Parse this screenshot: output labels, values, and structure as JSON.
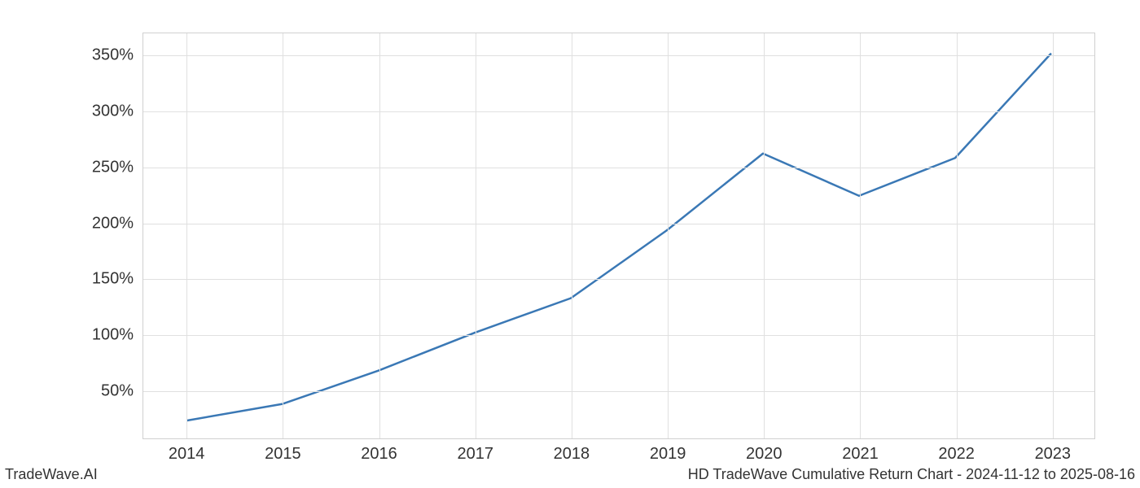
{
  "chart": {
    "type": "line",
    "line_color": "#3a78b5",
    "line_width": 2.5,
    "background_color": "#ffffff",
    "grid_color": "#e0e0e0",
    "border_color": "#d0d0d0",
    "tick_label_fontsize": 20,
    "tick_label_color": "#333333",
    "x": {
      "values": [
        2014,
        2015,
        2016,
        2017,
        2018,
        2019,
        2020,
        2021,
        2022,
        2023
      ],
      "ticks": [
        2014,
        2015,
        2016,
        2017,
        2018,
        2019,
        2020,
        2021,
        2022,
        2023
      ],
      "tick_labels": [
        "2014",
        "2015",
        "2016",
        "2017",
        "2018",
        "2019",
        "2020",
        "2021",
        "2022",
        "2023"
      ],
      "lim": [
        2013.55,
        2023.45
      ]
    },
    "y": {
      "values": [
        22,
        37,
        67,
        101,
        132,
        193,
        262,
        224,
        258,
        352
      ],
      "ticks": [
        50,
        100,
        150,
        200,
        250,
        300,
        350
      ],
      "tick_labels": [
        "50%",
        "100%",
        "150%",
        "200%",
        "250%",
        "300%",
        "350%"
      ],
      "lim": [
        6,
        370
      ]
    }
  },
  "footer": {
    "left": "TradeWave.AI",
    "right": "HD TradeWave Cumulative Return Chart - 2024-11-12 to 2025-08-16",
    "fontsize": 18,
    "color": "#333333"
  }
}
